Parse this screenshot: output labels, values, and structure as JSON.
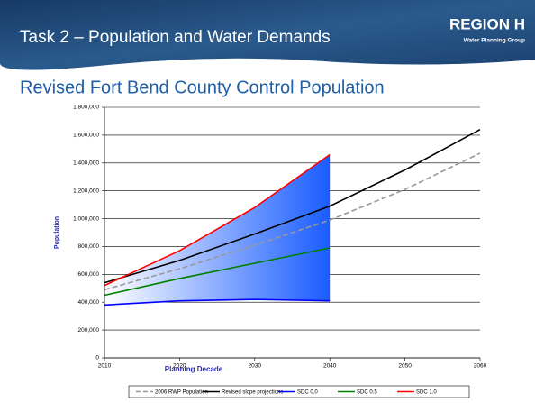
{
  "header": {
    "title": "Task 2 – Population and Water Demands",
    "logo_main": "REGION H",
    "logo_sub": "Water Planning Group"
  },
  "chart_data": {
    "type": "line",
    "title": "Revised Fort Bend County Control Population",
    "x_label": "Planning Decade",
    "y_label": "Population",
    "x": [
      2010,
      2020,
      2030,
      2040,
      2050,
      2060
    ],
    "xlim": [
      2010,
      2060
    ],
    "xticks": [
      2010,
      2020,
      2030,
      2040,
      2050,
      2060
    ],
    "ylim": [
      0,
      1800000
    ],
    "yticks": [
      0,
      {
        "value": 200000,
        "label": "200,000"
      },
      {
        "value": 400000,
        "label": "400,000"
      },
      {
        "value": 600000,
        "label": "600,000"
      },
      {
        "value": 800000,
        "label": "800,000"
      },
      {
        "value": 1000000,
        "label": "1,000,000"
      },
      {
        "value": 1200000,
        "label": "1,200,000"
      },
      {
        "value": 1400000,
        "label": "1,400,000"
      },
      {
        "value": 1600000,
        "label": "1,600,000"
      },
      {
        "value": 1800000,
        "label": "1,800,000"
      }
    ],
    "grid": true,
    "legend": "bottom",
    "series": [
      {
        "name": "2006 RWP Population",
        "color": "#999999",
        "dashed": true,
        "values": [
          490000,
          640000,
          810000,
          990000,
          1210000,
          1470000
        ]
      },
      {
        "name": "Revised slope projections",
        "color": "#000000",
        "values": [
          540000,
          700000,
          890000,
          1090000,
          1350000,
          1640000
        ]
      },
      {
        "name": "SDC 0.0",
        "color": "#0000ff",
        "values": [
          380000,
          410000,
          420000,
          410000,
          null,
          null
        ]
      },
      {
        "name": "SDC 0.5",
        "color": "#008000",
        "values": [
          450000,
          570000,
          680000,
          790000,
          null,
          null
        ]
      },
      {
        "name": "SDC 1.0",
        "color": "#ff0000",
        "values": [
          520000,
          770000,
          1080000,
          1460000,
          null,
          null
        ]
      }
    ],
    "band_between": [
      "SDC 0.0",
      "SDC 1.0"
    ]
  }
}
